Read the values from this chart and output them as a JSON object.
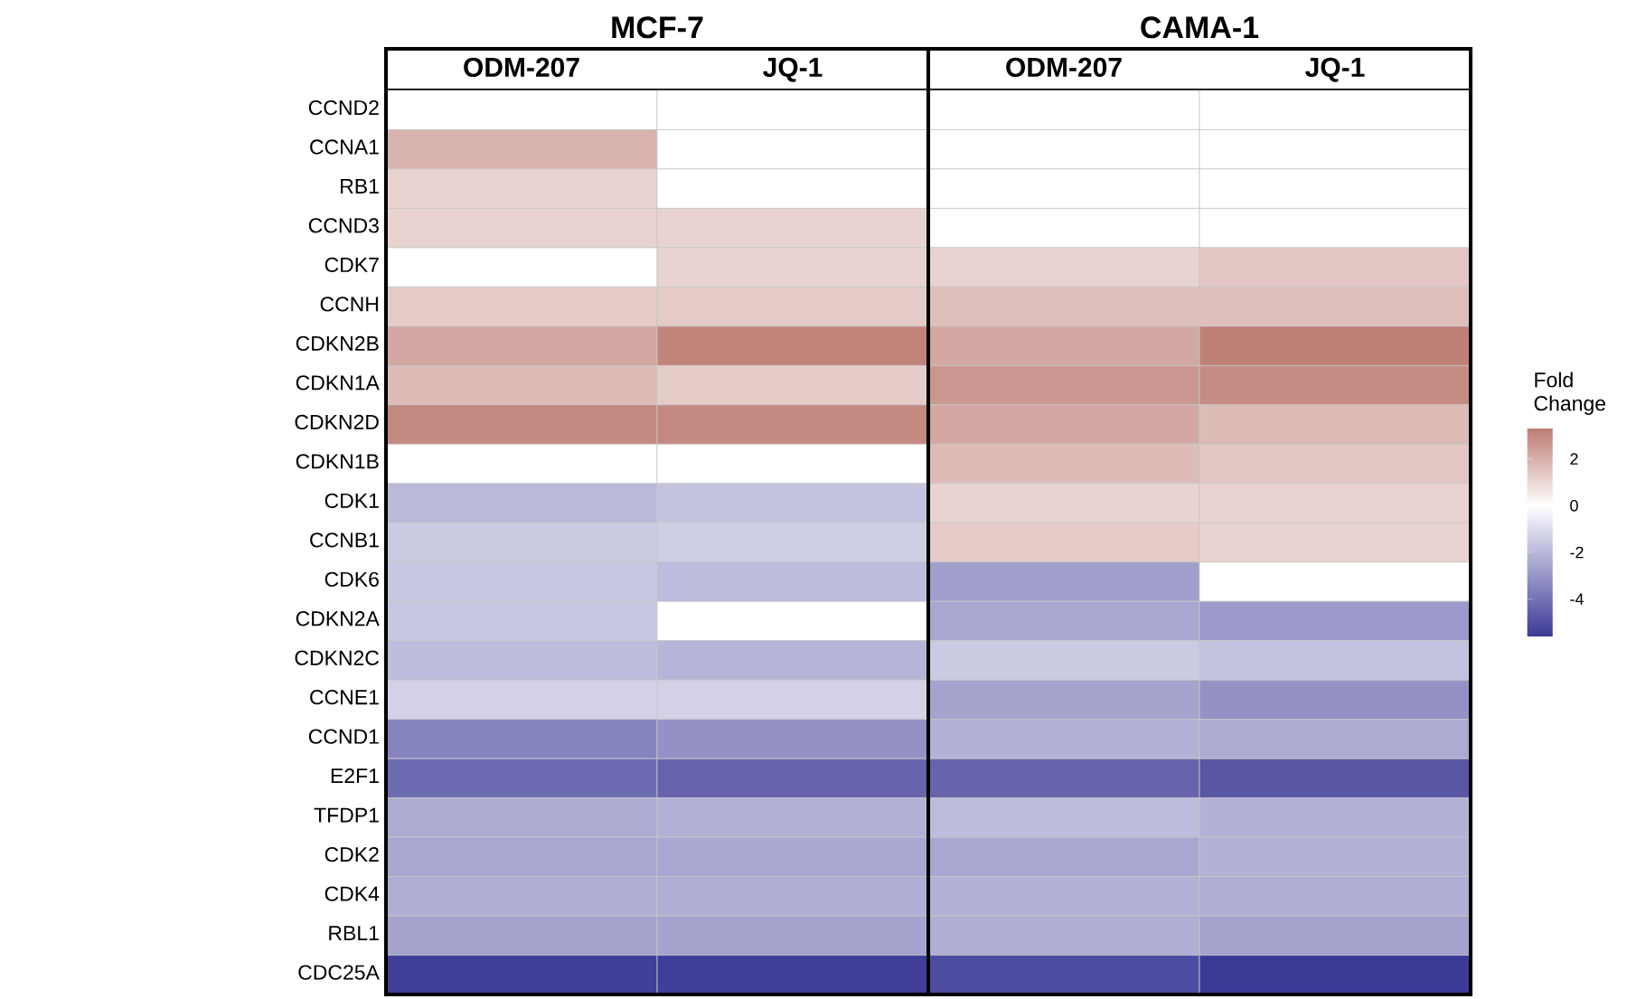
{
  "chart_data": {
    "type": "heatmap",
    "categories": [
      "ODM-207",
      "JQ-1",
      "ODM-207",
      "JQ-1"
    ],
    "annotations": [
      "MCF-7",
      "CAMA-1"
    ],
    "y_categories": [
      "CCND2",
      "CCNA1",
      "RB1",
      "CCND3",
      "CDK7",
      "CCNH",
      "CDKN2B",
      "CDKN1A",
      "CDKN2D",
      "CDKN1B",
      "CDK1",
      "CCNB1",
      "CDK6",
      "CDKN2A",
      "CDKN2C",
      "CCNE1",
      "CCND1",
      "E2F1",
      "TFDP1",
      "CDK2",
      "CDK4",
      "RBL1",
      "CDC25A"
    ],
    "cells": [
      [
        0,
        0,
        0,
        0
      ],
      [
        1.9,
        0,
        0,
        0
      ],
      [
        1.1,
        0,
        0,
        0
      ],
      [
        1.1,
        1.1,
        0,
        0
      ],
      [
        0,
        1.1,
        1.1,
        1.4
      ],
      [
        1.3,
        1.3,
        1.6,
        1.6
      ],
      [
        2.2,
        3.1,
        2.2,
        3.2
      ],
      [
        1.7,
        1.3,
        2.6,
        2.9
      ],
      [
        3.0,
        3.0,
        2.2,
        1.7
      ],
      [
        0,
        0,
        1.7,
        1.4
      ],
      [
        -2.0,
        -1.7,
        1.1,
        1.1
      ],
      [
        -1.5,
        -1.4,
        1.3,
        1.1
      ],
      [
        -1.6,
        -1.9,
        -2.7,
        0
      ],
      [
        -1.6,
        0,
        -2.5,
        -2.9
      ],
      [
        -1.9,
        -2.1,
        -1.5,
        -1.7
      ],
      [
        -1.3,
        -1.3,
        -2.6,
        -3.1
      ],
      [
        -3.5,
        -3.1,
        -2.2,
        -2.4
      ],
      [
        -4.2,
        -4.4,
        -4.4,
        -4.8
      ],
      [
        -2.4,
        -2.2,
        -1.9,
        -2.2
      ],
      [
        -2.5,
        -2.5,
        -2.5,
        -2.2
      ],
      [
        -2.3,
        -2.3,
        -2.2,
        -2.3
      ],
      [
        -2.6,
        -2.6,
        -2.3,
        -2.6
      ],
      [
        -5.5,
        -5.5,
        -5.1,
        -5.6
      ]
    ],
    "clabel": "Fold Change",
    "clim": [
      -5.6,
      3.3
    ],
    "cticks": [
      2,
      0,
      -2,
      -4
    ]
  }
}
